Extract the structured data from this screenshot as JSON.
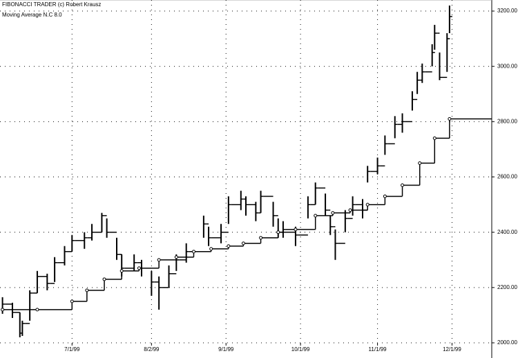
{
  "chart_data": {
    "type": "ohlc",
    "title": "FIBONACCI TRADER (c) Robert Krausz",
    "x": [
      "6/3/99",
      "6/7/99",
      "6/10/99",
      "6/11/99",
      "6/14/99",
      "6/17/99",
      "6/21/99",
      "6/24/99",
      "6/28/99",
      "7/1/99",
      "7/6/99",
      "7/9/99",
      "7/13/99",
      "7/15/99",
      "7/19/99",
      "7/21/99",
      "7/26/99",
      "7/29/99",
      "8/2/99",
      "8/5/99",
      "8/9/99",
      "8/12/99",
      "8/16/99",
      "8/23/99",
      "8/25/99",
      "8/30/99",
      "9/2/99",
      "9/7/99",
      "9/9/99",
      "9/13/99",
      "9/15/99",
      "9/20/99",
      "9/22/99",
      "9/24/99",
      "9/29/99",
      "10/4/99",
      "10/7/99",
      "10/11/99",
      "10/13/99",
      "10/15/99",
      "10/19/99",
      "10/22/99",
      "10/26/99",
      "10/28/99",
      "11/1/99",
      "11/4/99",
      "11/8/99",
      "11/11/99",
      "11/15/99",
      "11/17/99",
      "11/19/99",
      "11/23/99",
      "11/24/99",
      "11/26/99",
      "11/29/99",
      "11/30/99"
    ],
    "high": [
      2165,
      2145,
      2110,
      2080,
      2190,
      2260,
      2250,
      2310,
      2350,
      2390,
      2400,
      2430,
      2470,
      2450,
      2380,
      2320,
      2320,
      2300,
      2260,
      2240,
      2280,
      2320,
      2360,
      2460,
      2420,
      2430,
      2530,
      2550,
      2530,
      2510,
      2550,
      2510,
      2450,
      2440,
      2420,
      2530,
      2580,
      2540,
      2460,
      2410,
      2480,
      2530,
      2520,
      2640,
      2670,
      2750,
      2820,
      2830,
      2910,
      2980,
      3010,
      3080,
      3150,
      3050,
      3120,
      3220
    ],
    "low": [
      2105,
      2090,
      2020,
      2025,
      2080,
      2180,
      2190,
      2220,
      2280,
      2330,
      2340,
      2370,
      2400,
      2380,
      2300,
      2240,
      2260,
      2240,
      2170,
      2120,
      2200,
      2260,
      2290,
      2380,
      2350,
      2360,
      2430,
      2480,
      2460,
      2440,
      2470,
      2420,
      2380,
      2380,
      2350,
      2450,
      2500,
      2460,
      2390,
      2300,
      2400,
      2460,
      2450,
      2580,
      2610,
      2680,
      2740,
      2760,
      2840,
      2900,
      2940,
      3000,
      3060,
      2950,
      2980,
      3120
    ],
    "close": [
      2140,
      2110,
      2035,
      2070,
      2180,
      2240,
      2215,
      2290,
      2330,
      2370,
      2380,
      2400,
      2460,
      2400,
      2320,
      2270,
      2290,
      2270,
      2220,
      2200,
      2250,
      2300,
      2330,
      2430,
      2380,
      2400,
      2500,
      2520,
      2500,
      2470,
      2530,
      2460,
      2400,
      2410,
      2390,
      2500,
      2560,
      2480,
      2420,
      2360,
      2450,
      2500,
      2480,
      2620,
      2640,
      2720,
      2790,
      2800,
      2880,
      2950,
      2980,
      3050,
      3120,
      2960,
      3100,
      3180
    ],
    "color": "#000000",
    "moving_average": {
      "name": "Moving Average N.C 8.0",
      "color": "#000000",
      "x": [
        "6/3/99",
        "6/17/99",
        "7/1/99",
        "7/7/99",
        "7/14/99",
        "7/21/99",
        "7/28/99",
        "8/5/99",
        "8/12/99",
        "8/19/99",
        "8/26/99",
        "9/2/99",
        "9/8/99",
        "9/15/99",
        "9/22/99",
        "9/29/99",
        "10/7/99",
        "10/14/99",
        "10/21/99",
        "10/28/99",
        "11/4/99",
        "11/11/99",
        "11/18/99",
        "11/24/99",
        "11/30/99"
      ],
      "values": [
        2120,
        2120,
        2150,
        2190,
        2230,
        2260,
        2270,
        2300,
        2310,
        2330,
        2340,
        2350,
        2360,
        2380,
        2400,
        2410,
        2460,
        2470,
        2480,
        2500,
        2530,
        2570,
        2650,
        2740,
        2810
      ]
    },
    "xlim": [
      "6/2/99",
      "12/17/99"
    ],
    "xticks": [
      "7/1/99",
      "8/2/99",
      "9/1/99",
      "10/1/99",
      "11/1/99",
      "12/1/99"
    ],
    "ylim": [
      2000,
      3240
    ],
    "yticks": [
      {
        "value": 2000,
        "label": "2000.00"
      },
      {
        "value": 2200,
        "label": "2200.00"
      },
      {
        "value": 2400,
        "label": "2400.00"
      },
      {
        "value": 2600,
        "label": "2600.00"
      },
      {
        "value": 2800,
        "label": "2800.00"
      },
      {
        "value": 3000,
        "label": "3000.00"
      },
      {
        "value": 3200,
        "label": "3200.00"
      }
    ],
    "grid": true
  }
}
